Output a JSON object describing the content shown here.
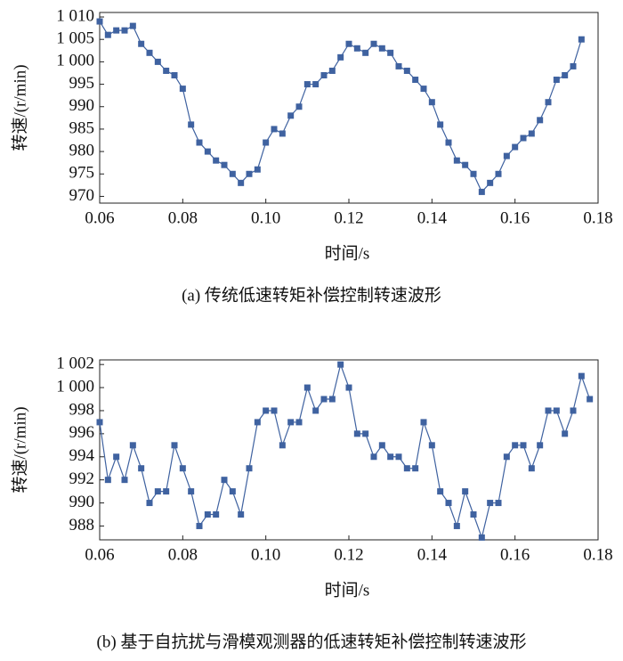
{
  "chart_data": [
    {
      "type": "line",
      "marker": "square",
      "caption": "(a) 传统低速转矩补偿控制转速波形",
      "x_label": "时间/s",
      "y_label": "转速/(r/min)",
      "x": [
        0.06,
        0.062,
        0.064,
        0.066,
        0.068,
        0.07,
        0.072,
        0.074,
        0.076,
        0.078,
        0.08,
        0.082,
        0.084,
        0.086,
        0.088,
        0.09,
        0.092,
        0.094,
        0.096,
        0.098,
        0.1,
        0.102,
        0.104,
        0.106,
        0.108,
        0.11,
        0.112,
        0.114,
        0.116,
        0.118,
        0.12,
        0.122,
        0.124,
        0.126,
        0.128,
        0.13,
        0.132,
        0.134,
        0.136,
        0.138,
        0.14,
        0.142,
        0.144,
        0.146,
        0.148,
        0.15,
        0.152,
        0.154,
        0.156,
        0.158,
        0.16,
        0.162,
        0.164,
        0.166,
        0.168,
        0.17,
        0.172,
        0.174,
        0.176
      ],
      "series": [
        {
          "color": "#3f62a0",
          "values": [
            1009,
            1006,
            1007,
            1007,
            1008,
            1004,
            1002,
            1000,
            998,
            997,
            994,
            986,
            982,
            980,
            978,
            977,
            975,
            973,
            975,
            976,
            982,
            985,
            984,
            988,
            990,
            995,
            995,
            997,
            998,
            1001,
            1004,
            1003,
            1002,
            1004,
            1003,
            1002,
            999,
            998,
            996,
            994,
            991,
            986,
            982,
            978,
            977,
            975,
            971,
            973,
            975,
            979,
            981,
            983,
            984,
            987,
            991,
            996,
            997,
            999,
            1005
          ]
        }
      ],
      "xlim": [
        0.06,
        0.18
      ],
      "xticks": [
        0.06,
        0.08,
        {
          "value": 0.1,
          "label": "0.10"
        },
        0.12,
        0.14,
        0.16,
        0.18
      ],
      "ylim": [
        968.5,
        1011
      ],
      "yticks": [
        970,
        975,
        980,
        985,
        990,
        995,
        {
          "value": 1000,
          "label": "1 000"
        },
        {
          "value": 1005,
          "label": "1 005"
        },
        {
          "value": 1010,
          "label": "1 010"
        }
      ]
    },
    {
      "type": "line",
      "marker": "square",
      "caption": "(b) 基于自抗扰与滑模观测器的低速转矩补偿控制转速波形",
      "x_label": "时间/s",
      "y_label": "转速/(r/min)",
      "x": [
        0.06,
        0.062,
        0.064,
        0.066,
        0.068,
        0.07,
        0.072,
        0.074,
        0.076,
        0.078,
        0.08,
        0.082,
        0.084,
        0.086,
        0.088,
        0.09,
        0.092,
        0.094,
        0.096,
        0.098,
        0.1,
        0.102,
        0.104,
        0.106,
        0.108,
        0.11,
        0.112,
        0.114,
        0.116,
        0.118,
        0.12,
        0.122,
        0.124,
        0.126,
        0.128,
        0.13,
        0.132,
        0.134,
        0.136,
        0.138,
        0.14,
        0.142,
        0.144,
        0.146,
        0.148,
        0.15,
        0.152,
        0.154,
        0.156,
        0.158,
        0.16,
        0.162,
        0.164,
        0.166,
        0.168,
        0.17,
        0.172,
        0.174,
        0.176,
        0.178
      ],
      "series": [
        {
          "color": "#3f62a0",
          "values": [
            997,
            992,
            994,
            992,
            995,
            993,
            990,
            991,
            991,
            995,
            993,
            991,
            988,
            989,
            989,
            992,
            991,
            989,
            993,
            997,
            998,
            998,
            995,
            997,
            997,
            1000,
            998,
            999,
            999,
            1002,
            1000,
            996,
            996,
            994,
            995,
            994,
            994,
            993,
            993,
            997,
            995,
            991,
            990,
            988,
            991,
            989,
            987,
            990,
            990,
            994,
            995,
            995,
            993,
            995,
            998,
            998,
            996,
            998,
            1001,
            999
          ]
        }
      ],
      "xlim": [
        0.06,
        0.18
      ],
      "xticks": [
        0.06,
        0.08,
        {
          "value": 0.1,
          "label": "0.10"
        },
        0.12,
        0.14,
        0.16,
        0.18
      ],
      "ylim": [
        986.8,
        1002.4
      ],
      "yticks": [
        988,
        990,
        992,
        994,
        996,
        998,
        {
          "value": 1000,
          "label": "1 000"
        },
        {
          "value": 1002,
          "label": "1 002"
        }
      ]
    }
  ]
}
